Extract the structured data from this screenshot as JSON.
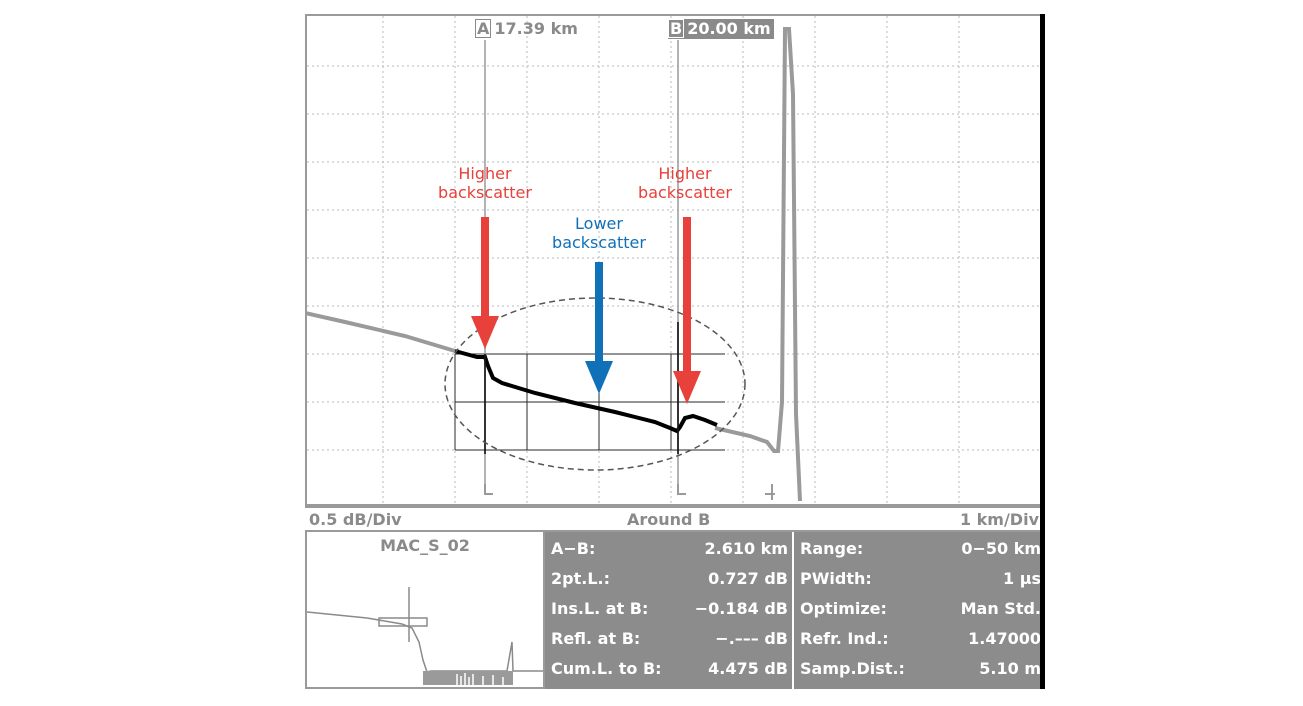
{
  "cursors": {
    "a": {
      "box": "A",
      "value": "17.39 km"
    },
    "b": {
      "box": "B",
      "value": "20.00 km"
    }
  },
  "annotations": {
    "higher_left": [
      "Higher",
      "backscatter"
    ],
    "lower": [
      "Lower",
      "backscatter"
    ],
    "higher_right": [
      "Higher",
      "backscatter"
    ]
  },
  "scale_bar": {
    "vertical": "0.5 dB/Div",
    "mode": "Around B",
    "horizontal": "1 km/Div"
  },
  "overview": {
    "title": "MAC_S_02"
  },
  "measurements": [
    {
      "label": "A−B:",
      "value": "2.610 km"
    },
    {
      "label": "2pt.L.:",
      "value": "0.727 dB"
    },
    {
      "label": "Ins.L. at B:",
      "value": "−0.184 dB"
    },
    {
      "label": "Refl. at B:",
      "value": "−.––– dB"
    },
    {
      "label": "Cum.L. to B:",
      "value": "4.475 dB"
    }
  ],
  "settings": [
    {
      "label": "Range:",
      "value": "0−50 km"
    },
    {
      "label": "PWidth:",
      "value": "1 µs"
    },
    {
      "label": "Optimize:",
      "value": "Man Std."
    },
    {
      "label": "Refr. Ind.:",
      "value": "1.47000"
    },
    {
      "label": "Samp.Dist.:",
      "value": "5.10 m"
    }
  ],
  "colors": {
    "higher": "#e8403a",
    "lower": "#1070b8",
    "trace_gray": "#9a9a9a",
    "trace_black": "#000000",
    "panel": "#8c8c8c"
  }
}
